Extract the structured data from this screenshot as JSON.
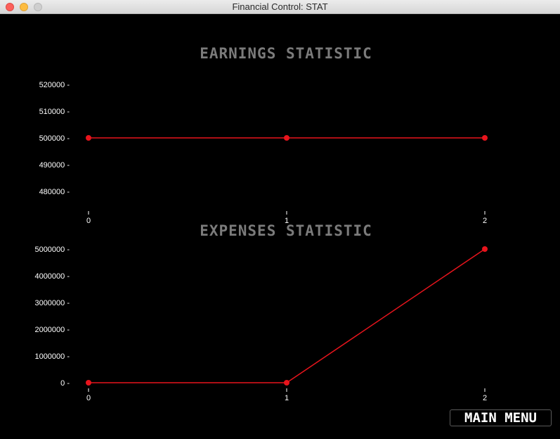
{
  "window": {
    "title": "Financial Control: STAT"
  },
  "main_menu_label": "MAIN MENU",
  "colors": {
    "line": "#e8141c",
    "title": "#7b7b7b",
    "ticks": "#ffffff",
    "background": "#000000"
  },
  "chart_data": [
    {
      "type": "line",
      "title": "EARNINGS STATISTIC",
      "xlabel": "",
      "ylabel": "",
      "x": [
        0,
        1,
        2
      ],
      "x_tick_labels": [
        "0",
        "1",
        "2"
      ],
      "values": [
        500000,
        500000,
        500000
      ],
      "y_ticks": [
        480000,
        490000,
        500000,
        510000,
        520000
      ],
      "y_tick_labels": [
        "480000 -",
        "490000 -",
        "500000 -",
        "510000 -",
        "520000 -"
      ],
      "ylim": [
        480000,
        520000
      ],
      "grid": false,
      "legend": "none"
    },
    {
      "type": "line",
      "title": "EXPENSES STATISTIC",
      "xlabel": "",
      "ylabel": "",
      "x": [
        0,
        1,
        2
      ],
      "x_tick_labels": [
        "0",
        "1",
        "2"
      ],
      "values": [
        0,
        0,
        5000000
      ],
      "y_ticks": [
        0,
        1000000,
        2000000,
        3000000,
        4000000,
        5000000
      ],
      "y_tick_labels": [
        "0 -",
        "1000000 -",
        "2000000 -",
        "3000000 -",
        "4000000 -",
        "5000000 -"
      ],
      "ylim": [
        0,
        5000000
      ],
      "grid": false,
      "legend": "none"
    }
  ]
}
